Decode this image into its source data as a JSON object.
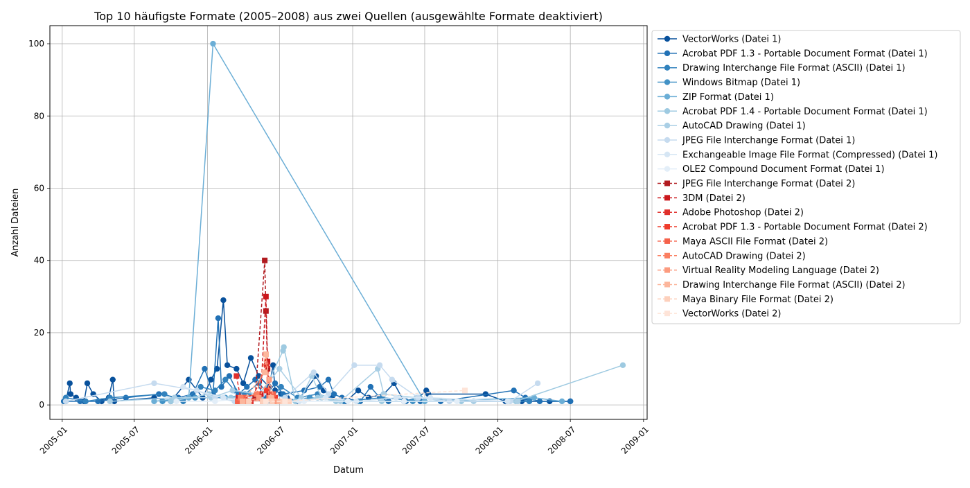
{
  "chart_data": {
    "type": "line",
    "title": "Top 10 häufigste Formate (2005–2008) aus zwei Quellen (ausgewählte Formate deaktiviert)",
    "xlabel": "Datum",
    "ylabel": "Anzahl Dateien",
    "x_axis": {
      "kind": "date",
      "range": [
        "2004-12-01",
        "2009-01-10"
      ]
    },
    "xticks": [
      "2005-01",
      "2005-07",
      "2006-01",
      "2006-07",
      "2007-01",
      "2007-07",
      "2008-01",
      "2008-07",
      "2009-01"
    ],
    "xtick_dates": [
      "2005-01-01",
      "2005-07-01",
      "2006-01-01",
      "2006-07-01",
      "2007-01-01",
      "2007-07-01",
      "2008-01-01",
      "2008-07-01",
      "2009-01-01"
    ],
    "ylim": [
      -4,
      105
    ],
    "yticks": [
      0,
      20,
      40,
      60,
      80,
      100
    ],
    "grid": true,
    "legend_position": "outside-right",
    "series": [
      {
        "name": "VectorWorks (Datei 1)",
        "color": "#08519c",
        "style": "solid",
        "marker": "circle",
        "points": [
          [
            "2005-01-10",
            1
          ],
          [
            "2005-01-20",
            6
          ],
          [
            "2005-01-22",
            3
          ],
          [
            "2005-02-05",
            2
          ],
          [
            "2005-02-25",
            1
          ],
          [
            "2005-03-05",
            6
          ],
          [
            "2005-03-20",
            3
          ],
          [
            "2005-04-10",
            1
          ],
          [
            "2005-04-28",
            2
          ],
          [
            "2005-05-08",
            7
          ],
          [
            "2005-05-12",
            1
          ],
          [
            "2005-08-20",
            2
          ],
          [
            "2005-10-01",
            1
          ],
          [
            "2005-11-15",
            7
          ],
          [
            "2005-12-20",
            2
          ],
          [
            "2006-01-10",
            7
          ],
          [
            "2006-01-25",
            10
          ],
          [
            "2006-02-10",
            29
          ],
          [
            "2006-02-20",
            11
          ],
          [
            "2006-03-15",
            10
          ],
          [
            "2006-04-01",
            6
          ],
          [
            "2006-04-20",
            13
          ],
          [
            "2006-05-10",
            8
          ],
          [
            "2006-06-05",
            5
          ],
          [
            "2006-06-15",
            11
          ],
          [
            "2006-06-20",
            4
          ],
          [
            "2006-07-05",
            3
          ],
          [
            "2006-07-20",
            2
          ],
          [
            "2006-08-15",
            1
          ],
          [
            "2006-10-01",
            8
          ],
          [
            "2006-10-20",
            4
          ],
          [
            "2006-11-10",
            2
          ],
          [
            "2006-12-15",
            1
          ],
          [
            "2007-01-15",
            4
          ],
          [
            "2007-02-10",
            2
          ],
          [
            "2007-03-20",
            3
          ],
          [
            "2007-04-15",
            6
          ],
          [
            "2007-05-10",
            1
          ],
          [
            "2007-06-15",
            2
          ],
          [
            "2007-07-05",
            4
          ],
          [
            "2007-07-10",
            3
          ],
          [
            "2007-12-01",
            3
          ],
          [
            "2008-01-20",
            1
          ],
          [
            "2008-03-01",
            1
          ],
          [
            "2008-05-10",
            1
          ],
          [
            "2008-07-01",
            1
          ]
        ]
      },
      {
        "name": "Acrobat PDF 1.3 - Portable Document Format (Datei 1)",
        "color": "#2171b5",
        "style": "solid",
        "marker": "circle",
        "points": [
          [
            "2005-01-05",
            1
          ],
          [
            "2005-02-15",
            1
          ],
          [
            "2005-04-01",
            1
          ],
          [
            "2005-06-10",
            2
          ],
          [
            "2005-09-01",
            3
          ],
          [
            "2005-10-20",
            2
          ],
          [
            "2005-11-25",
            3
          ],
          [
            "2005-12-25",
            10
          ],
          [
            "2006-01-15",
            3
          ],
          [
            "2006-01-28",
            24
          ],
          [
            "2006-02-05",
            5
          ],
          [
            "2006-02-25",
            8
          ],
          [
            "2006-03-20",
            3
          ],
          [
            "2006-04-10",
            5
          ],
          [
            "2006-05-01",
            7
          ],
          [
            "2006-05-25",
            2
          ],
          [
            "2006-06-20",
            6
          ],
          [
            "2006-07-10",
            3
          ],
          [
            "2006-09-01",
            4
          ],
          [
            "2006-10-10",
            5
          ],
          [
            "2006-11-01",
            7
          ],
          [
            "2006-11-15",
            3
          ],
          [
            "2006-12-05",
            2
          ],
          [
            "2007-01-20",
            1
          ],
          [
            "2007-02-15",
            5
          ],
          [
            "2007-03-10",
            2
          ],
          [
            "2007-04-01",
            1
          ],
          [
            "2007-05-15",
            1
          ],
          [
            "2007-06-20",
            1
          ],
          [
            "2007-08-10",
            1
          ],
          [
            "2008-02-10",
            4
          ],
          [
            "2008-03-10",
            2
          ],
          [
            "2008-04-15",
            1
          ],
          [
            "2008-07-01",
            1
          ]
        ]
      },
      {
        "name": "Drawing Interchange File Format (ASCII) (Datei 1)",
        "color": "#3182bd",
        "style": "solid",
        "marker": "circle",
        "points": [
          [
            "2005-01-10",
            2
          ],
          [
            "2005-03-01",
            1
          ],
          [
            "2005-05-01",
            2
          ],
          [
            "2005-09-15",
            3
          ],
          [
            "2005-11-01",
            1
          ],
          [
            "2005-12-15",
            5
          ],
          [
            "2006-01-20",
            4
          ],
          [
            "2006-02-15",
            7
          ],
          [
            "2006-03-10",
            4
          ],
          [
            "2006-04-05",
            3
          ],
          [
            "2006-05-10",
            6
          ],
          [
            "2006-06-12",
            2
          ],
          [
            "2006-07-05",
            5
          ],
          [
            "2006-08-15",
            2
          ],
          [
            "2006-10-05",
            3
          ],
          [
            "2006-12-10",
            1
          ],
          [
            "2007-03-15",
            2
          ],
          [
            "2007-07-01",
            1
          ],
          [
            "2008-03-20",
            1
          ]
        ]
      },
      {
        "name": "Windows Bitmap (Datei 1)",
        "color": "#4292c6",
        "style": "solid",
        "marker": "circle",
        "points": [
          [
            "2005-09-10",
            1
          ],
          [
            "2005-12-01",
            2
          ],
          [
            "2006-02-15",
            2
          ],
          [
            "2006-04-15",
            3
          ],
          [
            "2006-06-01",
            1
          ],
          [
            "2006-07-01",
            1
          ],
          [
            "2006-09-15",
            2
          ],
          [
            "2007-01-15",
            1
          ],
          [
            "2007-06-01",
            1
          ]
        ]
      },
      {
        "name": "ZIP Format (Datei 1)",
        "color": "#6baed6",
        "style": "solid",
        "marker": "circle",
        "points": [
          [
            "2005-08-20",
            1
          ],
          [
            "2005-11-15",
            2
          ],
          [
            "2006-01-15",
            100
          ],
          [
            "2007-07-01",
            1
          ],
          [
            "2008-04-01",
            2
          ],
          [
            "2008-06-10",
            1
          ]
        ]
      },
      {
        "name": "Acrobat PDF 1.4 - Portable Document Format (Datei 1)",
        "color": "#9ecae1",
        "style": "solid",
        "marker": "circle",
        "points": [
          [
            "2005-10-01",
            1
          ],
          [
            "2006-01-05",
            3
          ],
          [
            "2006-03-01",
            2
          ],
          [
            "2006-05-15",
            2
          ],
          [
            "2006-07-10",
            15
          ],
          [
            "2006-07-12",
            16
          ],
          [
            "2006-08-10",
            1
          ],
          [
            "2006-10-05",
            2
          ],
          [
            "2006-11-20",
            1
          ],
          [
            "2007-03-15",
            1
          ],
          [
            "2007-10-01",
            1
          ],
          [
            "2008-02-15",
            1
          ],
          [
            "2008-11-10",
            11
          ]
        ]
      },
      {
        "name": "AutoCAD Drawing (Datei 1)",
        "color": "#aacfe5",
        "style": "solid",
        "marker": "circle",
        "points": [
          [
            "2005-05-01",
            1
          ],
          [
            "2005-10-10",
            2
          ],
          [
            "2006-01-10",
            2
          ],
          [
            "2006-03-05",
            4
          ],
          [
            "2006-05-10",
            3
          ],
          [
            "2006-07-01",
            10
          ],
          [
            "2006-08-25",
            2
          ],
          [
            "2006-09-20",
            8
          ],
          [
            "2006-10-15",
            2
          ],
          [
            "2006-12-01",
            1
          ],
          [
            "2007-03-05",
            10
          ],
          [
            "2007-03-20",
            3
          ],
          [
            "2007-06-10",
            2
          ],
          [
            "2007-11-01",
            1
          ],
          [
            "2008-02-20",
            1
          ]
        ]
      },
      {
        "name": "JPEG File Interchange Format (Datei 1)",
        "color": "#c6dbef",
        "style": "solid",
        "marker": "circle",
        "points": [
          [
            "2005-01-10",
            1
          ],
          [
            "2005-08-20",
            6
          ],
          [
            "2005-12-05",
            4
          ],
          [
            "2006-01-20",
            2
          ],
          [
            "2006-03-10",
            1
          ],
          [
            "2006-05-20",
            3
          ],
          [
            "2006-07-15",
            2
          ],
          [
            "2006-09-25",
            9
          ],
          [
            "2006-11-01",
            3
          ],
          [
            "2007-01-05",
            11
          ],
          [
            "2007-03-10",
            11
          ],
          [
            "2007-04-10",
            7
          ],
          [
            "2007-06-15",
            2
          ],
          [
            "2007-09-01",
            1
          ],
          [
            "2008-02-01",
            1
          ],
          [
            "2008-04-10",
            6
          ]
        ]
      },
      {
        "name": "Exchangeable Image File Format (Compressed) (Datei 1)",
        "color": "#d6e6f4",
        "style": "solid",
        "marker": "circle",
        "points": [
          [
            "2005-11-01",
            5
          ],
          [
            "2006-02-10",
            2
          ],
          [
            "2006-04-20",
            1
          ],
          [
            "2006-06-25",
            1
          ],
          [
            "2006-08-20",
            1
          ],
          [
            "2006-10-25",
            2
          ],
          [
            "2007-01-10",
            1
          ],
          [
            "2007-04-20",
            2
          ],
          [
            "2007-07-15",
            2
          ],
          [
            "2008-01-25",
            1
          ]
        ]
      },
      {
        "name": "OLE2 Compound Document Format (Datei 1)",
        "color": "#e3eef8",
        "style": "solid",
        "marker": "circle",
        "points": [
          [
            "2005-10-15",
            1
          ],
          [
            "2006-01-20",
            1
          ],
          [
            "2006-04-10",
            2
          ],
          [
            "2006-06-28",
            1
          ],
          [
            "2006-09-01",
            1
          ],
          [
            "2006-12-20",
            1
          ],
          [
            "2007-05-10",
            1
          ],
          [
            "2007-09-20",
            1
          ]
        ]
      },
      {
        "name": "JPEG File Interchange Format (Datei 2)",
        "color": "#b11a1f",
        "style": "dashed",
        "marker": "square",
        "points": [
          [
            "2006-04-10",
            1
          ],
          [
            "2006-05-01",
            2
          ],
          [
            "2006-05-25",
            40
          ],
          [
            "2006-05-28",
            26
          ],
          [
            "2006-06-01",
            10
          ],
          [
            "2006-06-05",
            3
          ],
          [
            "2006-06-15",
            1
          ]
        ]
      },
      {
        "name": "3DM (Datei 2)",
        "color": "#cb181d",
        "style": "dashed",
        "marker": "square",
        "points": [
          [
            "2006-03-20",
            2
          ],
          [
            "2006-05-15",
            3
          ],
          [
            "2006-05-28",
            30
          ],
          [
            "2006-06-01",
            12
          ],
          [
            "2006-06-08",
            2
          ]
        ]
      },
      {
        "name": "Adobe Photoshop (Datei 2)",
        "color": "#e0302c",
        "style": "dashed",
        "marker": "square",
        "points": [
          [
            "2006-03-15",
            8
          ],
          [
            "2006-03-25",
            2
          ],
          [
            "2006-04-20",
            1
          ],
          [
            "2006-05-30",
            11
          ],
          [
            "2006-06-10",
            2
          ]
        ]
      },
      {
        "name": "Acrobat PDF 1.3 - Portable Document Format (Datei 2)",
        "color": "#ef3b2c",
        "style": "dashed",
        "marker": "square",
        "points": [
          [
            "2006-03-20",
            1
          ],
          [
            "2006-04-05",
            2
          ],
          [
            "2006-05-30",
            4
          ],
          [
            "2006-06-20",
            2
          ]
        ]
      },
      {
        "name": "Maya ASCII File Format (Datei 2)",
        "color": "#f5614a",
        "style": "dashed",
        "marker": "square",
        "points": [
          [
            "2006-03-18",
            1
          ],
          [
            "2006-04-01",
            2
          ],
          [
            "2006-05-20",
            1
          ],
          [
            "2006-06-15",
            3
          ]
        ]
      },
      {
        "name": "AutoCAD Drawing (Datei 2)",
        "color": "#fb7f61",
        "style": "dashed",
        "marker": "square",
        "points": [
          [
            "2006-03-25",
            2
          ],
          [
            "2006-05-05",
            3
          ],
          [
            "2006-05-28",
            14
          ],
          [
            "2006-06-05",
            2
          ],
          [
            "2006-06-25",
            1
          ]
        ]
      },
      {
        "name": "Virtual Reality Modeling Language (Datei 2)",
        "color": "#fc9b7f",
        "style": "dashed",
        "marker": "square",
        "points": [
          [
            "2006-04-10",
            1
          ],
          [
            "2006-05-10",
            2
          ],
          [
            "2006-06-05",
            7
          ],
          [
            "2006-06-20",
            1
          ]
        ]
      },
      {
        "name": "Drawing Interchange File Format (ASCII) (Datei 2)",
        "color": "#fcb69c",
        "style": "dashed",
        "marker": "square",
        "points": [
          [
            "2006-03-30",
            1
          ],
          [
            "2006-05-25",
            9
          ],
          [
            "2006-05-28",
            14
          ],
          [
            "2006-06-10",
            2
          ],
          [
            "2006-07-01",
            1
          ]
        ]
      },
      {
        "name": "Maya Binary File Format (Datei 2)",
        "color": "#fdd0bc",
        "style": "dashed",
        "marker": "square",
        "points": [
          [
            "2006-04-15",
            1
          ],
          [
            "2006-05-20",
            1
          ],
          [
            "2006-06-12",
            1
          ],
          [
            "2006-07-10",
            1
          ],
          [
            "2006-07-25",
            1
          ]
        ]
      },
      {
        "name": "VectorWorks (Datei 2)",
        "color": "#fee4d8",
        "style": "dashed",
        "marker": "square",
        "points": [
          [
            "2006-05-28",
            1
          ],
          [
            "2006-07-15",
            1
          ],
          [
            "2007-10-10",
            4
          ]
        ]
      }
    ]
  }
}
